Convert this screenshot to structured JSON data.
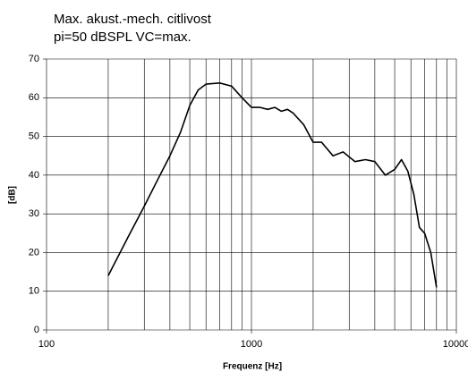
{
  "chart_data": {
    "type": "line",
    "title": "Max. akust.-mech. citlivost",
    "subtitle": "pi=50 dBSPL VC=max.",
    "x_label": "Frequenz [Hz]",
    "y_label": "[dB]",
    "x": [
      200,
      250,
      300,
      350,
      400,
      450,
      500,
      550,
      600,
      700,
      800,
      900,
      1000,
      1100,
      1200,
      1300,
      1400,
      1500,
      1600,
      1800,
      2000,
      2200,
      2500,
      2800,
      3200,
      3600,
      4000,
      4500,
      5000,
      5400,
      5800,
      6200,
      6600,
      7000,
      7500,
      8000
    ],
    "series": [
      {
        "name": "citlivost",
        "color": "#000000",
        "values": [
          14,
          24,
          32,
          39,
          45,
          51,
          58,
          62,
          63.5,
          63.8,
          63,
          60,
          57.5,
          57.5,
          57,
          57.5,
          56.5,
          57,
          56,
          53,
          48.5,
          48.5,
          45,
          46,
          43.5,
          44,
          43.5,
          40,
          41.5,
          44,
          41,
          35,
          26.5,
          25,
          20,
          11
        ]
      }
    ],
    "xscale": "log",
    "xlim": [
      100,
      10000
    ],
    "xticks": [
      100,
      1000,
      10000
    ],
    "xminorticks": [
      200,
      300,
      400,
      500,
      600,
      700,
      800,
      900,
      2000,
      3000,
      4000,
      5000,
      6000,
      7000,
      8000,
      9000
    ],
    "ylim": [
      0,
      70
    ],
    "yticks": [
      0,
      10,
      20,
      30,
      40,
      50,
      60,
      70
    ],
    "grid": true
  }
}
